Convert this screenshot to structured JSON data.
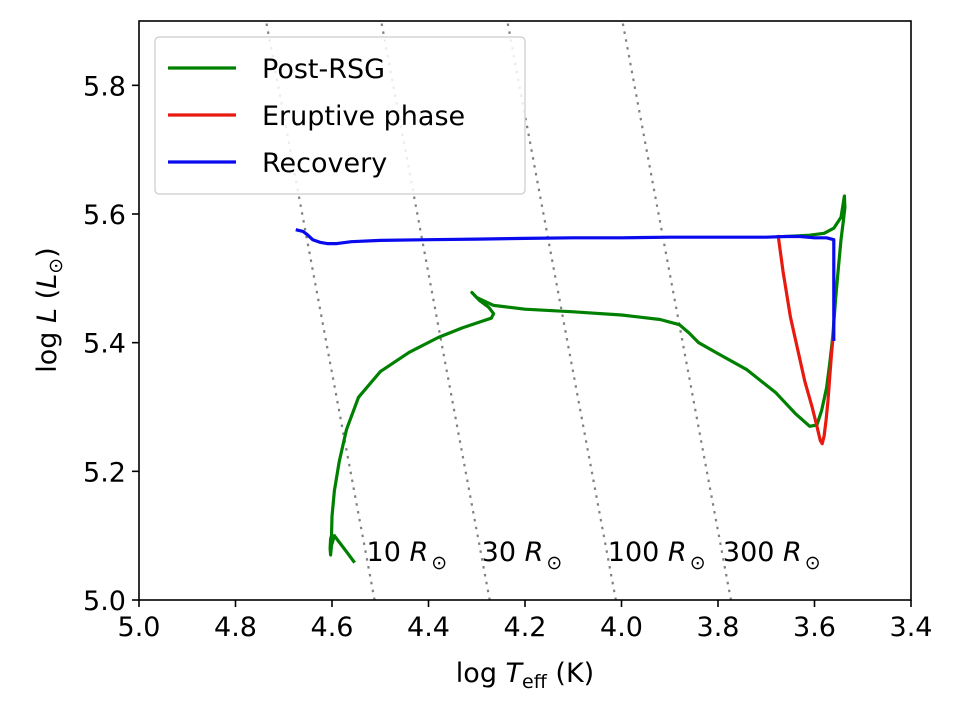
{
  "chart_data": {
    "type": "line",
    "xlabel": "log T_eff (K)",
    "ylabel": "log L (L_sun)",
    "xlim": [
      5.0,
      3.4
    ],
    "ylim": [
      5.0,
      5.9
    ],
    "xticks": [
      5.0,
      4.8,
      4.6,
      4.4,
      4.2,
      4.0,
      3.8,
      3.6,
      3.4
    ],
    "xtick_labels": [
      "5.0",
      "4.8",
      "4.6",
      "4.4",
      "4.2",
      "4.0",
      "3.8",
      "3.6",
      "3.4"
    ],
    "yticks": [
      5.0,
      5.2,
      5.4,
      5.6,
      5.8
    ],
    "ytick_labels": [
      "5.0",
      "5.2",
      "5.4",
      "5.6",
      "5.8"
    ],
    "grid": false,
    "legend_position": "top-left",
    "series": [
      {
        "name": "Post-RSG",
        "color": "#008000",
        "points": [
          [
            4.555,
            5.06
          ],
          [
            4.57,
            5.075
          ],
          [
            4.585,
            5.09
          ],
          [
            4.595,
            5.1
          ],
          [
            4.601,
            5.085
          ],
          [
            4.603,
            5.07
          ],
          [
            4.604,
            5.08
          ],
          [
            4.603,
            5.095
          ],
          [
            4.601,
            5.1
          ],
          [
            4.6,
            5.13
          ],
          [
            4.595,
            5.17
          ],
          [
            4.585,
            5.215
          ],
          [
            4.57,
            5.265
          ],
          [
            4.545,
            5.315
          ],
          [
            4.5,
            5.355
          ],
          [
            4.44,
            5.385
          ],
          [
            4.38,
            5.408
          ],
          [
            4.33,
            5.423
          ],
          [
            4.29,
            5.433
          ],
          [
            4.27,
            5.438
          ],
          [
            4.265,
            5.445
          ],
          [
            4.275,
            5.455
          ],
          [
            4.295,
            5.466
          ],
          [
            4.31,
            5.478
          ],
          [
            4.3,
            5.47
          ],
          [
            4.285,
            5.465
          ],
          [
            4.265,
            5.458
          ],
          [
            4.2,
            5.452
          ],
          [
            4.1,
            5.448
          ],
          [
            4.0,
            5.443
          ],
          [
            3.92,
            5.436
          ],
          [
            3.88,
            5.428
          ],
          [
            3.86,
            5.415
          ],
          [
            3.84,
            5.4
          ],
          [
            3.8,
            5.383
          ],
          [
            3.74,
            5.358
          ],
          [
            3.68,
            5.322
          ],
          [
            3.64,
            5.29
          ],
          [
            3.61,
            5.27
          ],
          [
            3.595,
            5.272
          ],
          [
            3.585,
            5.295
          ],
          [
            3.575,
            5.33
          ],
          [
            3.568,
            5.37
          ],
          [
            3.562,
            5.41
          ],
          [
            3.556,
            5.47
          ],
          [
            3.55,
            5.52
          ],
          [
            3.545,
            5.56
          ],
          [
            3.54,
            5.59
          ],
          [
            3.537,
            5.61
          ],
          [
            3.538,
            5.628
          ],
          [
            3.545,
            5.595
          ],
          [
            3.56,
            5.578
          ],
          [
            3.58,
            5.57
          ],
          [
            3.61,
            5.567
          ],
          [
            3.66,
            5.565
          ]
        ]
      },
      {
        "name": "Eruptive phase",
        "color": "#e8190f",
        "points": [
          [
            3.675,
            5.565
          ],
          [
            3.665,
            5.51
          ],
          [
            3.65,
            5.44
          ],
          [
            3.635,
            5.39
          ],
          [
            3.62,
            5.34
          ],
          [
            3.605,
            5.3
          ],
          [
            3.595,
            5.27
          ],
          [
            3.588,
            5.248
          ],
          [
            3.584,
            5.243
          ],
          [
            3.58,
            5.255
          ],
          [
            3.576,
            5.28
          ],
          [
            3.572,
            5.31
          ],
          [
            3.568,
            5.35
          ],
          [
            3.565,
            5.38
          ],
          [
            3.562,
            5.405
          ]
        ]
      },
      {
        "name": "Recovery",
        "color": "#0a0aee",
        "points": [
          [
            3.56,
            5.405
          ],
          [
            3.56,
            5.45
          ],
          [
            3.56,
            5.5
          ],
          [
            3.56,
            5.53
          ],
          [
            3.56,
            5.56
          ],
          [
            3.575,
            5.563
          ],
          [
            3.6,
            5.563
          ],
          [
            3.63,
            5.565
          ],
          [
            3.66,
            5.565
          ],
          [
            3.7,
            5.564
          ],
          [
            3.8,
            5.564
          ],
          [
            3.9,
            5.564
          ],
          [
            4.0,
            5.563
          ],
          [
            4.1,
            5.563
          ],
          [
            4.2,
            5.562
          ],
          [
            4.3,
            5.561
          ],
          [
            4.4,
            5.56
          ],
          [
            4.5,
            5.559
          ],
          [
            4.56,
            5.557
          ],
          [
            4.59,
            5.554
          ],
          [
            4.61,
            5.554
          ],
          [
            4.625,
            5.556
          ],
          [
            4.64,
            5.56
          ],
          [
            4.65,
            5.567
          ],
          [
            4.66,
            5.573
          ],
          [
            4.672,
            5.575
          ]
        ]
      }
    ],
    "isoradius_lines": [
      {
        "label": "10 R_sun",
        "label_main": "10 ",
        "label_sym": "R",
        "label_sub": "⊙",
        "radius": 10
      },
      {
        "label": "30 R_sun",
        "label_main": "30 ",
        "label_sym": "R",
        "label_sub": "⊙",
        "radius": 30
      },
      {
        "label": "100 R_sun",
        "label_main": "100 ",
        "label_sym": "R",
        "label_sub": "⊙",
        "radius": 100
      },
      {
        "label": "300 R_sun",
        "label_main": "300 ",
        "label_sym": "R",
        "label_sub": "⊙",
        "radius": 300
      }
    ],
    "isoradius_color": "#808080"
  }
}
